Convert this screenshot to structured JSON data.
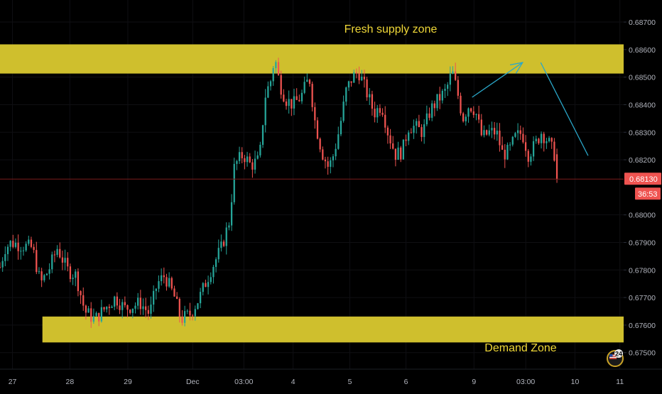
{
  "colors": {
    "background": "#000000",
    "up": "#26a69a",
    "down": "#ef5350",
    "zone": "#cfbf2d",
    "zone_text": "#f0d838",
    "annotation": "#2aa7c9",
    "price_line": "#7a1c1c",
    "price_badge": "#ef5350",
    "axis_text": "#b2b5be"
  },
  "icons": {
    "corner": "flag-badge-icon"
  },
  "chart_data": {
    "type": "candlestick",
    "y_axis": {
      "range": [
        0.6744,
        0.6878
      ],
      "tick_labels": [
        "0.68700",
        "0.68600",
        "0.68500",
        "0.68400",
        "0.68300",
        "0.68200",
        "0.68000",
        "0.67900",
        "0.67800",
        "0.67700",
        "0.67600",
        "0.67500"
      ]
    },
    "x_axis": {
      "range": [
        0,
        1000
      ],
      "tick_labels": [
        {
          "label": "27",
          "x": 20
        },
        {
          "label": "28",
          "x": 112
        },
        {
          "label": "29",
          "x": 205
        },
        {
          "label": "Dec",
          "x": 309
        },
        {
          "label": "03:00",
          "x": 391
        },
        {
          "label": "4",
          "x": 470
        },
        {
          "label": "5",
          "x": 561
        },
        {
          "label": "6",
          "x": 651
        },
        {
          "label": "9",
          "x": 760
        },
        {
          "label": "03:00",
          "x": 843
        },
        {
          "label": "10",
          "x": 922
        },
        {
          "label": "11",
          "x": 994
        }
      ]
    },
    "zones": [
      {
        "label": "Fresh supply zone",
        "x_start": 0,
        "x_end": 1000,
        "y_low": 0.68513,
        "y_high": 0.68619
      },
      {
        "label": "Demand Zone",
        "x_start": 68,
        "x_end": 1000,
        "y_low": 0.67537,
        "y_high": 0.67631
      }
    ],
    "current_price": {
      "value": 0.6813,
      "label": "0.68130",
      "countdown": "36:53"
    },
    "annotations": [
      {
        "type": "arrow",
        "points": [
          [
            757,
            0.68427
          ],
          [
            838,
            0.68553
          ]
        ]
      },
      {
        "type": "line",
        "points": [
          [
            867,
            0.68553
          ],
          [
            943,
            0.68215
          ]
        ]
      }
    ],
    "anchors": [
      [
        0,
        0.6781
      ],
      [
        8,
        0.6788
      ],
      [
        18,
        0.679
      ],
      [
        34,
        0.6789
      ],
      [
        52,
        0.6788
      ],
      [
        65,
        0.6775
      ],
      [
        78,
        0.678
      ],
      [
        92,
        0.6788
      ],
      [
        108,
        0.678
      ],
      [
        122,
        0.6778
      ],
      [
        136,
        0.6765
      ],
      [
        152,
        0.6762
      ],
      [
        168,
        0.6766
      ],
      [
        185,
        0.677
      ],
      [
        200,
        0.6766
      ],
      [
        225,
        0.6768
      ],
      [
        240,
        0.6764
      ],
      [
        252,
        0.6775
      ],
      [
        264,
        0.6778
      ],
      [
        280,
        0.677
      ],
      [
        290,
        0.6762
      ],
      [
        305,
        0.6764
      ],
      [
        320,
        0.677
      ],
      [
        338,
        0.678
      ],
      [
        355,
        0.6788
      ],
      [
        368,
        0.6798
      ],
      [
        376,
        0.6818
      ],
      [
        390,
        0.6822
      ],
      [
        402,
        0.6818
      ],
      [
        416,
        0.682
      ],
      [
        425,
        0.6843
      ],
      [
        436,
        0.685
      ],
      [
        440,
        0.6858
      ],
      [
        448,
        0.6848
      ],
      [
        458,
        0.6842
      ],
      [
        470,
        0.684
      ],
      [
        483,
        0.6843
      ],
      [
        496,
        0.685
      ],
      [
        505,
        0.6834
      ],
      [
        516,
        0.6823
      ],
      [
        527,
        0.6817
      ],
      [
        535,
        0.6822
      ],
      [
        545,
        0.6832
      ],
      [
        555,
        0.6845
      ],
      [
        565,
        0.685
      ],
      [
        575,
        0.6852
      ],
      [
        587,
        0.6845
      ],
      [
        600,
        0.6837
      ],
      [
        612,
        0.684
      ],
      [
        622,
        0.683
      ],
      [
        634,
        0.6822
      ],
      [
        645,
        0.6823
      ],
      [
        655,
        0.6832
      ],
      [
        665,
        0.6832
      ],
      [
        678,
        0.683
      ],
      [
        690,
        0.6838
      ],
      [
        703,
        0.6842
      ],
      [
        715,
        0.6845
      ],
      [
        725,
        0.6852
      ],
      [
        733,
        0.6845
      ],
      [
        742,
        0.6835
      ],
      [
        752,
        0.684
      ],
      [
        762,
        0.6838
      ],
      [
        773,
        0.6828
      ],
      [
        785,
        0.683
      ],
      [
        796,
        0.683
      ],
      [
        806,
        0.6822
      ],
      [
        816,
        0.6823
      ],
      [
        826,
        0.6828
      ],
      [
        837,
        0.683
      ],
      [
        847,
        0.6822
      ],
      [
        857,
        0.6825
      ],
      [
        868,
        0.683
      ],
      [
        878,
        0.6827
      ],
      [
        889,
        0.6822
      ],
      [
        893,
        0.6813
      ]
    ],
    "candle_count": 215
  }
}
